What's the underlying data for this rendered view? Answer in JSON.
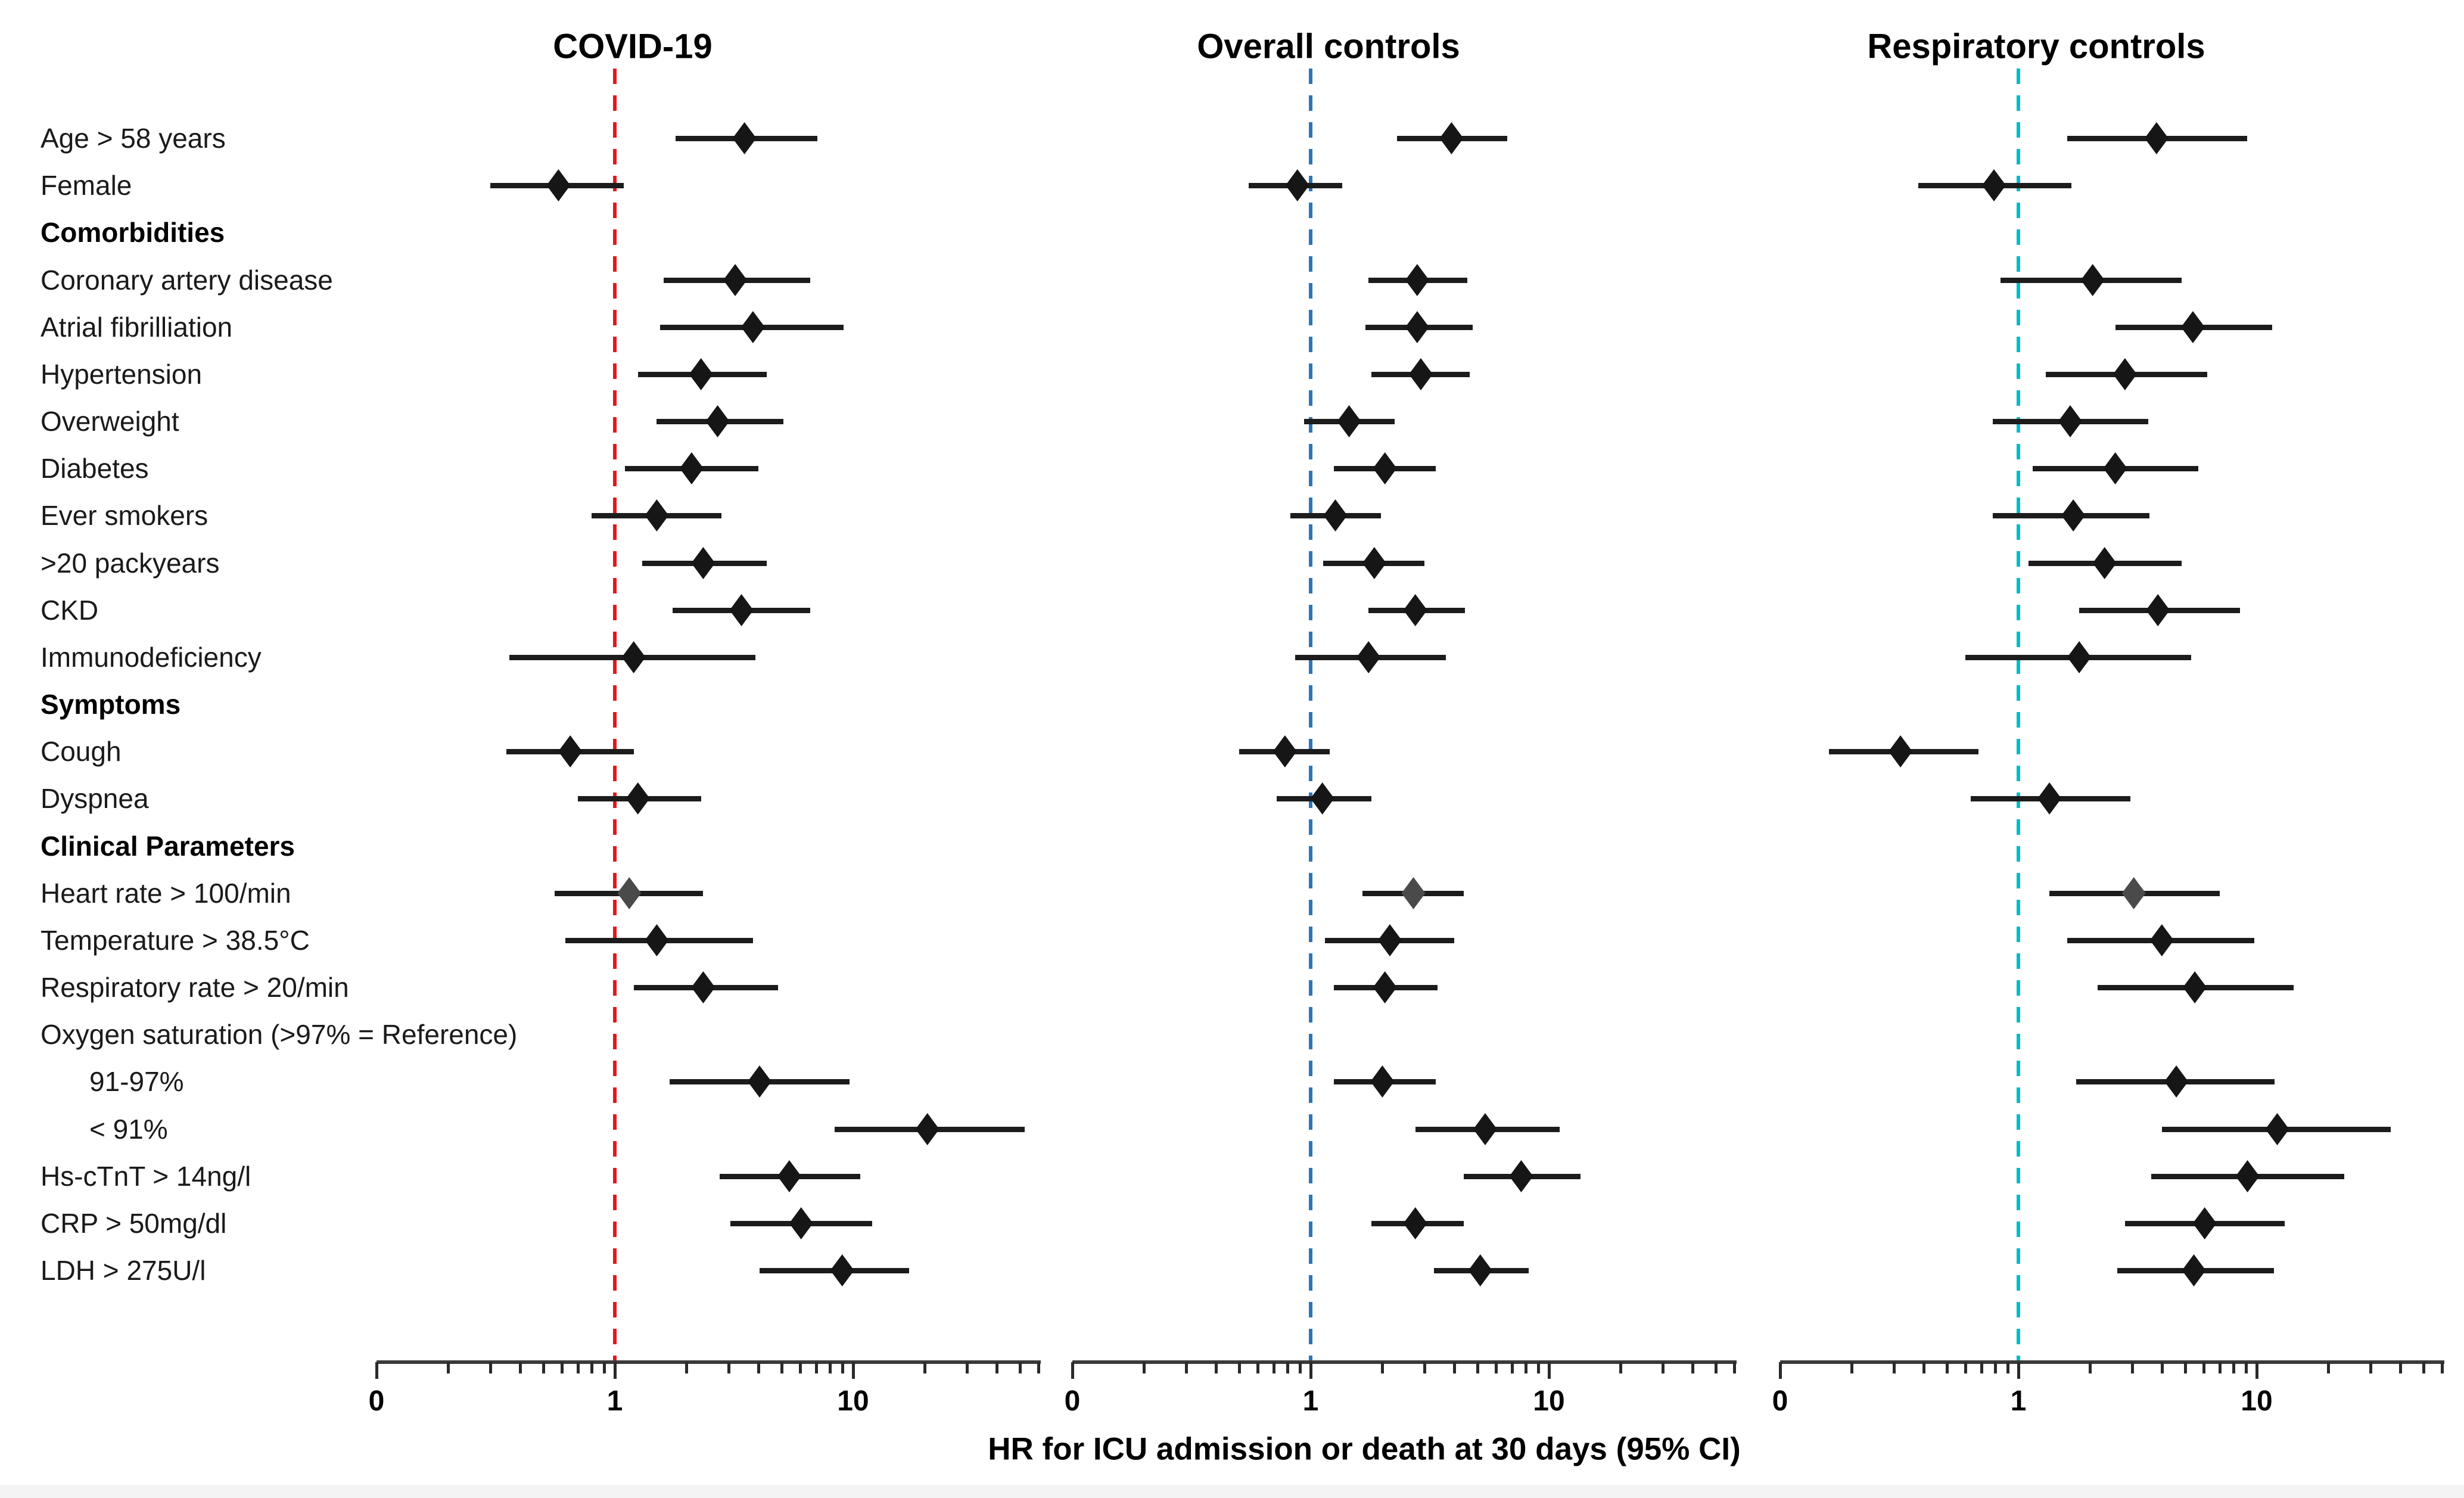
{
  "chart_data": {
    "type": "forest",
    "x_axis_title": "HR for ICU admission or death at 30 days (95% CI)",
    "axis": {
      "scale": "log",
      "tick_labels": [
        "0",
        "1",
        "10"
      ],
      "tick_values": [
        0.1,
        1,
        10
      ],
      "minor_ticks": [
        0.2,
        0.3,
        0.4,
        0.5,
        0.6,
        0.7,
        0.8,
        0.9,
        2,
        3,
        4,
        5,
        6,
        7,
        8,
        9,
        20,
        30,
        40,
        50,
        60
      ],
      "range": [
        0.1,
        63
      ],
      "grid": false
    },
    "panels": [
      {
        "title": "COVID-19",
        "ref_value": 1,
        "ref_color": "#e2191d"
      },
      {
        "title": "Overall controls",
        "ref_value": 1,
        "ref_color": "#2e75b6"
      },
      {
        "title": "Respiratory controls",
        "ref_value": 1,
        "ref_color": "#00bcc9"
      }
    ],
    "marker_color": "#161616",
    "gray_marker_color": "#4a4a4a",
    "line_color": "#1c1c1c",
    "rows": [
      {
        "label": "Age > 58 years",
        "type": "data",
        "est": [
          [
            3.5,
            1.8,
            7.1
          ],
          [
            3.9,
            2.3,
            6.7
          ],
          [
            3.8,
            1.6,
            9.1
          ]
        ]
      },
      {
        "label": "Female",
        "type": "data",
        "est": [
          [
            0.58,
            0.3,
            1.09
          ],
          [
            0.88,
            0.55,
            1.36
          ],
          [
            0.79,
            0.38,
            1.67
          ]
        ]
      },
      {
        "label": "Comorbidities",
        "type": "header"
      },
      {
        "label": "Coronary artery disease",
        "type": "data",
        "est": [
          [
            3.2,
            1.6,
            6.6
          ],
          [
            2.8,
            1.75,
            4.55
          ],
          [
            2.05,
            0.84,
            4.85
          ]
        ]
      },
      {
        "label": "Atrial fibrilliation",
        "type": "data",
        "est": [
          [
            3.8,
            1.55,
            9.1
          ],
          [
            2.8,
            1.7,
            4.8
          ],
          [
            5.4,
            2.55,
            11.6
          ]
        ]
      },
      {
        "label": "Hypertension",
        "type": "data",
        "est": [
          [
            2.3,
            1.25,
            4.35
          ],
          [
            2.9,
            1.8,
            4.65
          ],
          [
            2.8,
            1.3,
            6.2
          ]
        ]
      },
      {
        "label": "Overweight",
        "type": "data",
        "est": [
          [
            2.7,
            1.5,
            5.1
          ],
          [
            1.45,
            0.94,
            2.25
          ],
          [
            1.65,
            0.78,
            3.5
          ]
        ]
      },
      {
        "label": "Diabetes",
        "type": "data",
        "est": [
          [
            2.1,
            1.1,
            4.0
          ],
          [
            2.05,
            1.25,
            3.35
          ],
          [
            2.55,
            1.15,
            5.7
          ]
        ]
      },
      {
        "label": "Ever smokers",
        "type": "data",
        "est": [
          [
            1.5,
            0.8,
            2.8
          ],
          [
            1.27,
            0.82,
            1.97
          ],
          [
            1.7,
            0.78,
            3.55
          ]
        ]
      },
      {
        "label": ">20 packyears",
        "type": "data",
        "est": [
          [
            2.35,
            1.3,
            4.35
          ],
          [
            1.85,
            1.13,
            3.0
          ],
          [
            2.3,
            1.1,
            4.85
          ]
        ]
      },
      {
        "label": "CKD",
        "type": "data",
        "est": [
          [
            3.4,
            1.75,
            6.6
          ],
          [
            2.75,
            1.75,
            4.45
          ],
          [
            3.85,
            1.8,
            8.5
          ]
        ]
      },
      {
        "label": "Immunodeficiency",
        "type": "data",
        "est": [
          [
            1.2,
            0.36,
            3.9
          ],
          [
            1.75,
            0.86,
            3.7
          ],
          [
            1.8,
            0.6,
            5.3
          ]
        ]
      },
      {
        "label": "Symptoms",
        "type": "header"
      },
      {
        "label": "Cough",
        "type": "data",
        "est": [
          [
            0.65,
            0.35,
            1.2
          ],
          [
            0.78,
            0.5,
            1.2
          ],
          [
            0.32,
            0.16,
            0.68
          ]
        ]
      },
      {
        "label": "Dyspnea",
        "type": "data",
        "est": [
          [
            1.25,
            0.7,
            2.3
          ],
          [
            1.12,
            0.72,
            1.8
          ],
          [
            1.35,
            0.63,
            2.95
          ]
        ]
      },
      {
        "label": "Clinical Parameters",
        "type": "header"
      },
      {
        "label": "Heart rate > 100/min",
        "type": "data",
        "gray": true,
        "est": [
          [
            1.15,
            0.56,
            2.35
          ],
          [
            2.7,
            1.65,
            4.4
          ],
          [
            3.05,
            1.35,
            7.0
          ]
        ]
      },
      {
        "label": "Temperature > 38.5°C",
        "type": "data",
        "est": [
          [
            1.5,
            0.62,
            3.8
          ],
          [
            2.15,
            1.15,
            4.0
          ],
          [
            4.0,
            1.6,
            9.8
          ]
        ]
      },
      {
        "label": "Respiratory rate > 20/min",
        "type": "data",
        "est": [
          [
            2.35,
            1.2,
            4.85
          ],
          [
            2.05,
            1.25,
            3.4
          ],
          [
            5.5,
            2.15,
            14.3
          ]
        ]
      },
      {
        "label": "Oxygen saturation (>97% = Reference)",
        "type": "subheader"
      },
      {
        "label": "91-97%",
        "type": "data",
        "indent": true,
        "est": [
          [
            4.05,
            1.7,
            9.65
          ],
          [
            2.0,
            1.25,
            3.35
          ],
          [
            4.6,
            1.75,
            11.9
          ]
        ]
      },
      {
        "label": "< 91%",
        "type": "data",
        "indent": true,
        "est": [
          [
            20.5,
            8.35,
            52.5
          ],
          [
            5.4,
            2.75,
            11.1
          ],
          [
            12.2,
            4.0,
            36.5
          ]
        ]
      },
      {
        "label": "Hs-cTnT > 14ng/l",
        "type": "data",
        "est": [
          [
            5.4,
            2.75,
            10.7
          ],
          [
            7.65,
            4.4,
            13.6
          ],
          [
            9.15,
            3.6,
            23.3
          ]
        ]
      },
      {
        "label": "CRP > 50mg/dl",
        "type": "data",
        "est": [
          [
            6.05,
            3.05,
            12.0
          ],
          [
            2.75,
            1.8,
            4.4
          ],
          [
            6.05,
            2.8,
            13.1
          ]
        ]
      },
      {
        "label": "LDH > 275U/l",
        "type": "data",
        "est": [
          [
            9.0,
            4.05,
            17.2
          ],
          [
            5.15,
            3.3,
            8.2
          ],
          [
            5.45,
            2.6,
            11.8
          ]
        ]
      }
    ]
  }
}
